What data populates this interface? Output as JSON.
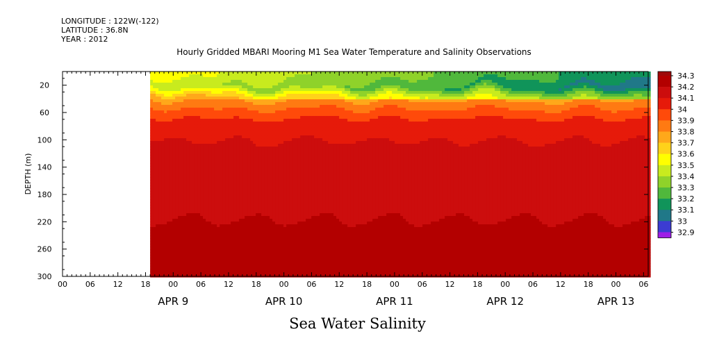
{
  "header": {
    "longitude": "LONGITUDE : 122W(-122)",
    "latitude": "LATITUDE : 36.8N",
    "year": "YEAR : 2012"
  },
  "chart_data": {
    "type": "heatmap",
    "title": "Hourly Gridded MBARI Mooring M1 Sea Water Temperature and Salinity Observations",
    "xlabel": "",
    "ylabel": "DEPTH (m)",
    "variable_label": "Sea Water Salinity",
    "depth_range": [
      0,
      300
    ],
    "depth_ticks": [
      20,
      60,
      100,
      140,
      180,
      220,
      260,
      300
    ],
    "x_hour_ticks": [
      "00",
      "06",
      "12",
      "18",
      "00",
      "06",
      "12",
      "18",
      "00",
      "06",
      "12",
      "18",
      "00",
      "06",
      "12",
      "18",
      "00",
      "06",
      "12",
      "18",
      "00",
      "06"
    ],
    "x_date_labels": [
      {
        "label": "APR  9",
        "hours": 24
      },
      {
        "label": "APR 10",
        "hours": 48
      },
      {
        "label": "APR 11",
        "hours": 72
      },
      {
        "label": "APR 12",
        "hours": 96
      },
      {
        "label": "APR 13",
        "hours": 120
      }
    ],
    "hours_range": [
      0,
      127
    ],
    "data_start_hours": 19,
    "colorbar_levels": [
      "34.3",
      "34.2",
      "34.1",
      "34",
      "33.9",
      "33.8",
      "33.7",
      "33.6",
      "33.5",
      "33.4",
      "33.3",
      "33.2",
      "33.1",
      "33",
      "32.9"
    ],
    "colorbar_colors": [
      "#9e0a0a",
      "#b30000",
      "#cc0d0d",
      "#e61a0a",
      "#ff4a0a",
      "#ff7a12",
      "#ffa81a",
      "#ffd21a",
      "#ffff00",
      "#c8eb1e",
      "#8fd22a",
      "#50b83c",
      "#10945a",
      "#207888",
      "#3c3cd2",
      "#9e1ee6"
    ],
    "profile_depths": [
      5,
      20,
      35,
      50,
      70,
      90,
      110,
      130,
      160,
      200,
      230,
      250,
      270,
      290
    ],
    "profile_salinity": [
      33.55,
      33.45,
      33.75,
      33.88,
      34.02,
      34.08,
      34.12,
      34.16,
      34.18,
      34.18,
      34.22,
      34.27,
      34.24,
      34.22
    ]
  }
}
